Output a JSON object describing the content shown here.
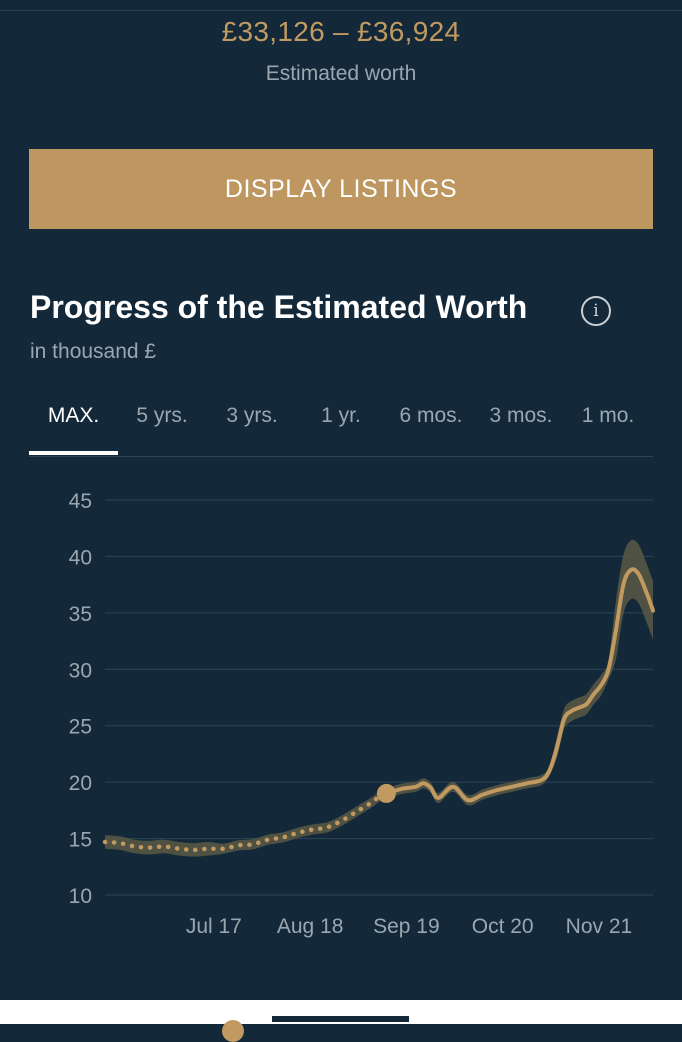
{
  "summary": {
    "price_range": "£33,126 – £36,924",
    "estimate_label": "Estimated worth"
  },
  "actions": {
    "display_listings": "DISPLAY LISTINGS"
  },
  "section": {
    "title": "Progress of the Estimated Worth",
    "subtitle": "in thousand £",
    "info_icon": "info-icon"
  },
  "tabs": [
    {
      "label": "MAX.",
      "active": true
    },
    {
      "label": "5 yrs.",
      "active": false
    },
    {
      "label": "3 yrs.",
      "active": false
    },
    {
      "label": "1 yr.",
      "active": false
    },
    {
      "label": "6 mos.",
      "active": false
    },
    {
      "label": "3 mos.",
      "active": false
    },
    {
      "label": "1 mo.",
      "active": false
    }
  ],
  "colors": {
    "background": "#13293a",
    "accent": "#c19a62",
    "band": "#5a5844",
    "grid": "#2e4555",
    "muted_text": "#9aa7b0"
  },
  "chart_data": {
    "type": "line",
    "title": "Progress of the Estimated Worth",
    "ylabel": "in thousand £",
    "xlabel": "",
    "ylim": [
      10,
      45
    ],
    "y_ticks": [
      10,
      15,
      20,
      25,
      30,
      35,
      40,
      45
    ],
    "x_ticks": [
      "Jul 17",
      "Aug 18",
      "Sep 19",
      "Oct 20",
      "Nov 21"
    ],
    "grid": true,
    "series": [
      {
        "style": "dotted (historic)",
        "points": [
          [
            "2016-07",
            14.7
          ],
          [
            "2016-09",
            14.6
          ],
          [
            "2016-11",
            14.3
          ],
          [
            "2017-01",
            14.2
          ],
          [
            "2017-03",
            14.3
          ],
          [
            "2017-05",
            14.1
          ],
          [
            "2017-07",
            14.0
          ],
          [
            "2017-09",
            14.1
          ],
          [
            "2017-11",
            14.1
          ],
          [
            "2018-01",
            14.4
          ],
          [
            "2018-03",
            14.5
          ],
          [
            "2018-05",
            14.9
          ],
          [
            "2018-07",
            15.1
          ],
          [
            "2018-09",
            15.5
          ],
          [
            "2018-11",
            15.8
          ],
          [
            "2019-01",
            16.0
          ],
          [
            "2019-03",
            16.6
          ],
          [
            "2019-05",
            17.4
          ],
          [
            "2019-07",
            18.2
          ],
          [
            "2019-08",
            18.7
          ],
          [
            "2019-09",
            19.0
          ]
        ]
      },
      {
        "style": "solid (recent)",
        "points": [
          [
            "2019-09",
            19.0
          ],
          [
            "2019-11",
            19.4
          ],
          [
            "2020-01",
            19.6
          ],
          [
            "2020-02",
            19.9
          ],
          [
            "2020-03",
            19.5
          ],
          [
            "2020-04",
            18.6
          ],
          [
            "2020-06",
            19.6
          ],
          [
            "2020-08",
            18.4
          ],
          [
            "2020-10",
            18.9
          ],
          [
            "2020-12",
            19.3
          ],
          [
            "2021-02",
            19.6
          ],
          [
            "2021-04",
            19.9
          ],
          [
            "2021-06",
            20.2
          ],
          [
            "2021-07",
            21.0
          ],
          [
            "2021-08",
            23.0
          ],
          [
            "2021-09",
            25.6
          ],
          [
            "2021-10",
            26.3
          ],
          [
            "2021-11",
            26.6
          ],
          [
            "2021-12",
            26.9
          ],
          [
            "2022-01",
            27.8
          ],
          [
            "2022-02",
            28.6
          ],
          [
            "2022-03",
            30.0
          ],
          [
            "2022-04",
            33.5
          ],
          [
            "2022-05",
            37.5
          ],
          [
            "2022-06",
            38.8
          ],
          [
            "2022-07",
            38.5
          ],
          [
            "2022-08",
            37.0
          ],
          [
            "2022-09",
            35.2
          ]
        ]
      }
    ],
    "marker": {
      "x": "2019-09",
      "y": 19.0
    }
  }
}
